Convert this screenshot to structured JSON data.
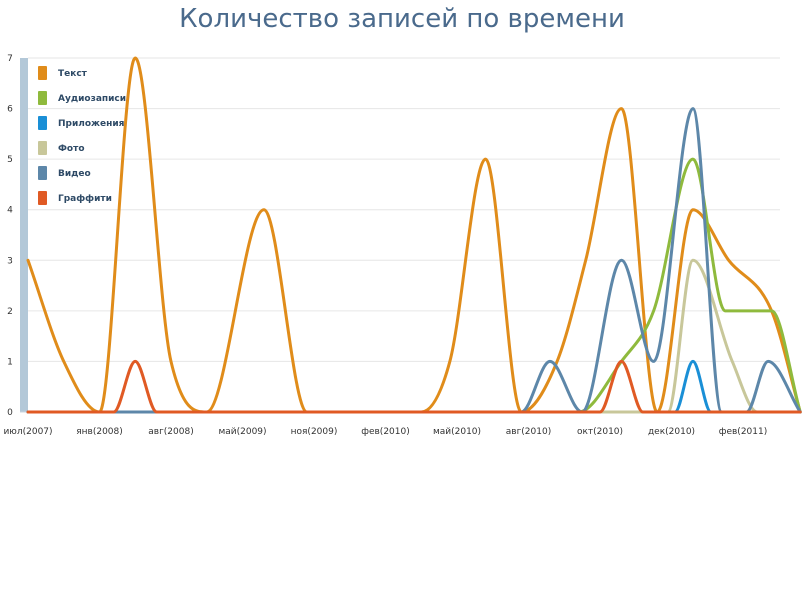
{
  "chart_data": {
    "type": "line",
    "title": "Количество записей по времени",
    "xlabel": "",
    "ylabel": "",
    "x_ticks": [
      "июл(2007)",
      "янв(2008)",
      "авг(2008)",
      "май(2009)",
      "ноя(2009)",
      "фев(2010)",
      "май(2010)",
      "авг(2010)",
      "окт(2010)",
      "дек(2010)",
      "фев(2011)"
    ],
    "y_ticks": [
      "0",
      "1",
      "2",
      "3",
      "4",
      "5",
      "6",
      "7"
    ],
    "ylim": [
      0,
      7
    ],
    "grid": true,
    "legend_position": "top-left",
    "series": [
      {
        "name": "Текст",
        "color": "#e08c1a",
        "points": [
          [
            0,
            3
          ],
          [
            0.5,
            1
          ],
          [
            1,
            0
          ],
          [
            1.5,
            7
          ],
          [
            2,
            1
          ],
          [
            2.5,
            0
          ],
          [
            3.3,
            4
          ],
          [
            3.9,
            0
          ],
          [
            4.8,
            0
          ],
          [
            5.5,
            0
          ],
          [
            5.9,
            1
          ],
          [
            6.4,
            5
          ],
          [
            6.9,
            0
          ],
          [
            7.4,
            1
          ],
          [
            7.8,
            3
          ],
          [
            8.3,
            6
          ],
          [
            8.8,
            0
          ],
          [
            9.3,
            4
          ],
          [
            9.8,
            3
          ],
          [
            10.4,
            2
          ],
          [
            10.8,
            0
          ]
        ]
      },
      {
        "name": "Аудиозаписи",
        "color": "#8fba3d",
        "points": [
          [
            0,
            0
          ],
          [
            7.7,
            0
          ],
          [
            8.3,
            1
          ],
          [
            8.75,
            2
          ],
          [
            9.3,
            5
          ],
          [
            9.75,
            2
          ],
          [
            10.4,
            2
          ],
          [
            10.8,
            0
          ]
        ]
      },
      {
        "name": "Приложения",
        "color": "#1a8fd6",
        "points": [
          [
            0,
            0
          ],
          [
            8.7,
            0
          ],
          [
            9.05,
            0
          ],
          [
            9.3,
            1
          ],
          [
            9.55,
            0
          ],
          [
            10.8,
            0
          ]
        ]
      },
      {
        "name": "Фото",
        "color": "#c8c79a",
        "points": [
          [
            0,
            0
          ],
          [
            8.95,
            0
          ],
          [
            9.3,
            3
          ],
          [
            9.85,
            1
          ],
          [
            10.2,
            0
          ],
          [
            10.8,
            0
          ]
        ]
      },
      {
        "name": "Видео",
        "color": "#5d87a9",
        "points": [
          [
            0,
            0
          ],
          [
            6.9,
            0
          ],
          [
            7.3,
            1
          ],
          [
            7.75,
            0
          ],
          [
            8.3,
            3
          ],
          [
            8.75,
            1
          ],
          [
            9.3,
            6
          ],
          [
            9.7,
            0
          ],
          [
            10.05,
            0
          ],
          [
            10.35,
            1
          ],
          [
            10.8,
            0
          ]
        ]
      },
      {
        "name": "Граффити",
        "color": "#e05a24",
        "points": [
          [
            0,
            0
          ],
          [
            1.2,
            0
          ],
          [
            1.5,
            1
          ],
          [
            1.8,
            0
          ],
          [
            8.0,
            0
          ],
          [
            8.3,
            1
          ],
          [
            8.6,
            0
          ],
          [
            10.8,
            0
          ]
        ]
      }
    ]
  }
}
